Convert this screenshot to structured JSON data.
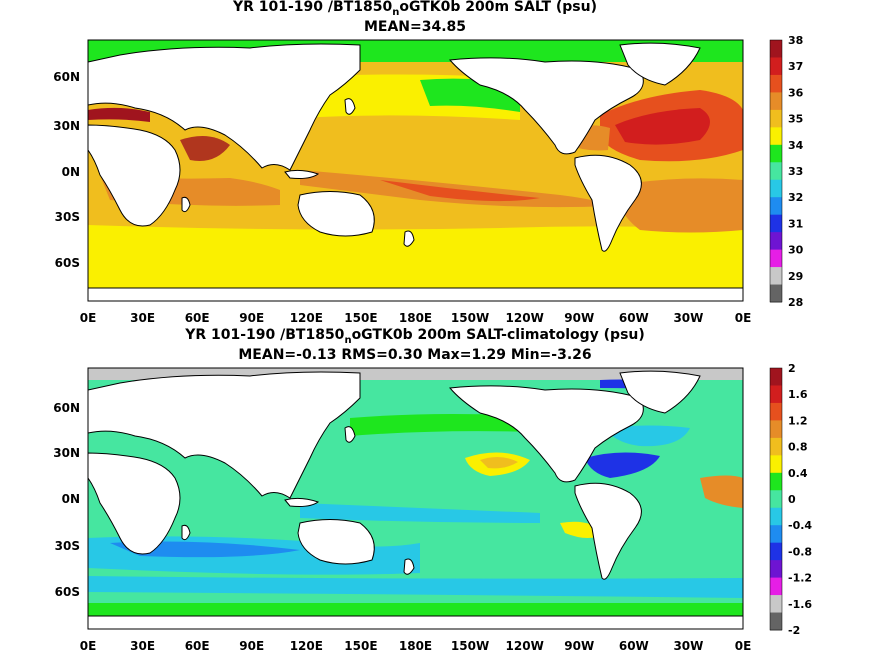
{
  "panels": [
    {
      "title_main": "YR 101-190 /BT1850",
      "title_sub": "n",
      "title_rest": "oGTK0b 200m SALT (psu)",
      "stats": "MEAN=34.85",
      "colorbar_labels": [
        "38",
        "37",
        "36",
        "35",
        "34",
        "33",
        "32",
        "31",
        "30",
        "29",
        "28"
      ],
      "colorbar_colors": [
        "#a0141e",
        "#d21e1e",
        "#e6501e",
        "#e68c28",
        "#f0be1e",
        "#faf000",
        "#1ee61e",
        "#46e6a0",
        "#28c8e6",
        "#1e8cf0",
        "#1e32e6",
        "#6e14d2",
        "#e61ee6",
        "#c8c8c8",
        "#646464"
      ]
    },
    {
      "title_main": "YR 101-190 /BT1850",
      "title_sub": "n",
      "title_rest": "oGTK0b 200m SALT-climatology (psu)",
      "stats": "MEAN=-0.13   RMS=0.30   Max=1.29   Min=-3.26",
      "colorbar_labels": [
        "2",
        "1.6",
        "1.2",
        "0.8",
        "0.4",
        "0",
        "-0.4",
        "-0.8",
        "-1.2",
        "-1.6",
        "-2"
      ],
      "colorbar_colors": [
        "#a0141e",
        "#d21e1e",
        "#e6501e",
        "#e68c28",
        "#f0be1e",
        "#faf000",
        "#1ee61e",
        "#46e6a0",
        "#28c8e6",
        "#1e8cf0",
        "#1e32e6",
        "#6e14d2",
        "#e61ee6",
        "#c8c8c8",
        "#646464"
      ]
    }
  ],
  "x_ticks": [
    "0E",
    "30E",
    "60E",
    "90E",
    "120E",
    "150E",
    "180E",
    "150W",
    "120W",
    "90W",
    "60W",
    "30W",
    "0E"
  ],
  "y_ticks": [
    "60N",
    "30N",
    "0N",
    "30S",
    "60S"
  ]
}
